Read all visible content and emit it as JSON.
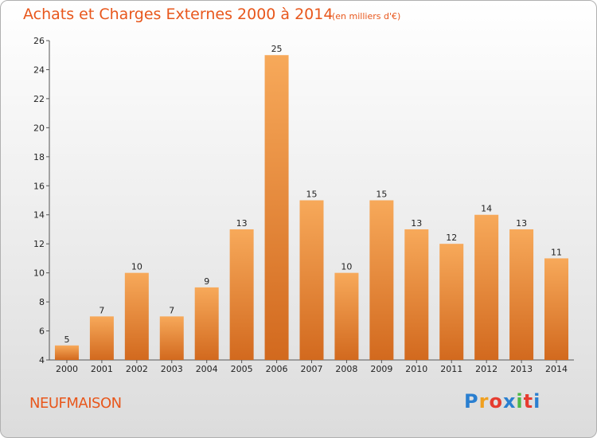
{
  "title": "Achats et Charges Externes 2000 à 2014",
  "unit": "(en milliers d'€)",
  "commune": "NEUFMAISON",
  "brand": {
    "letters": [
      "P",
      "r",
      "o",
      "x",
      "i",
      "t",
      "i"
    ],
    "colors": [
      "#2a7fd0",
      "#f0a020",
      "#e63c30",
      "#2a7fd0",
      "#4db848",
      "#e63c30",
      "#2a7fd0"
    ]
  },
  "chart_data": {
    "type": "bar",
    "categories": [
      "2000",
      "2001",
      "2002",
      "2003",
      "2004",
      "2005",
      "2006",
      "2007",
      "2008",
      "2009",
      "2010",
      "2011",
      "2012",
      "2013",
      "2014"
    ],
    "values": [
      5,
      7,
      10,
      7,
      9,
      13,
      25,
      15,
      10,
      15,
      13,
      12,
      14,
      13,
      11
    ],
    "data_labels": [
      "5",
      "7",
      "10",
      "7",
      "9",
      "13",
      "25",
      "15",
      "10",
      "15",
      "13",
      "12",
      "14",
      "13",
      "11"
    ],
    "ylim": [
      4,
      26
    ],
    "yticks": [
      4,
      6,
      8,
      10,
      12,
      14,
      16,
      18,
      20,
      22,
      24,
      26
    ],
    "grid": false,
    "bar_colors": {
      "top": "#f7a95a",
      "bottom": "#d2691e"
    }
  }
}
